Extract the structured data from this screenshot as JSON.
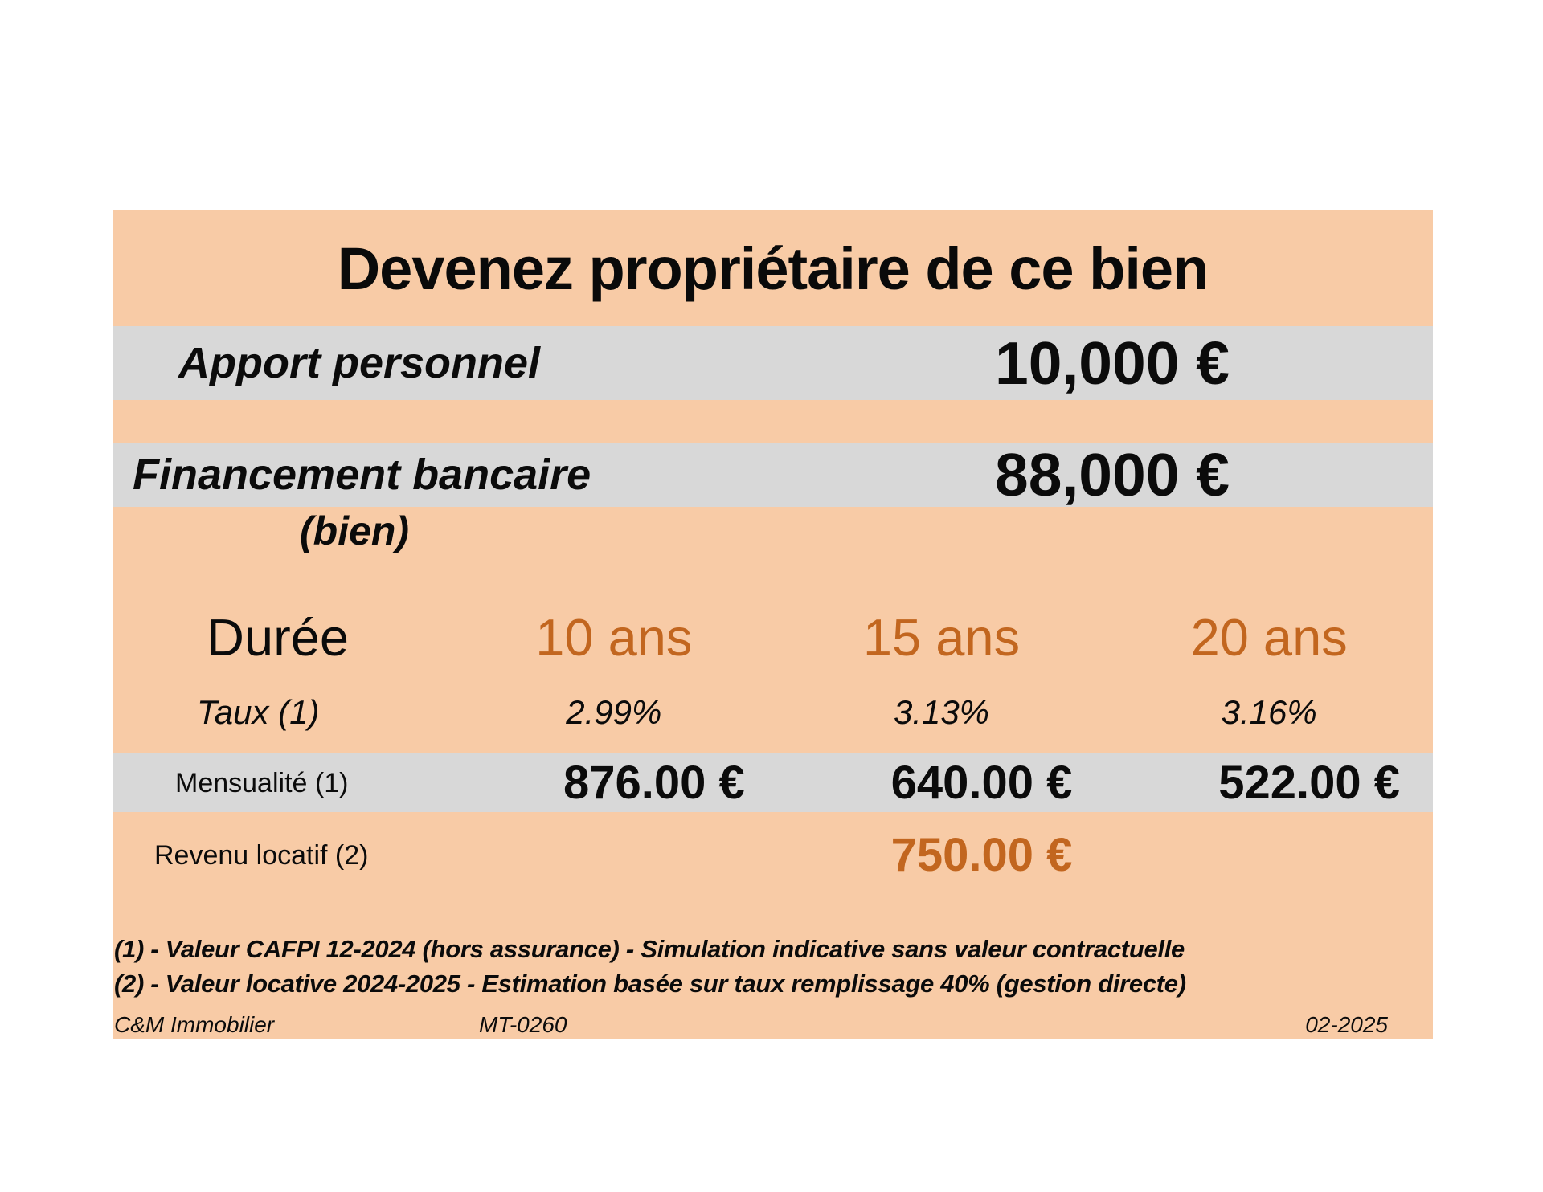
{
  "panel": {
    "title": "Devenez propriétaire de ce bien",
    "colors": {
      "panel_peach": "#F8CBA6",
      "band_gray": "#D8D8D8",
      "accent_orange": "#C2661F",
      "text_black": "#0B0B0B",
      "page_white": "#FFFFFF"
    }
  },
  "rows": {
    "apport": {
      "label": "Apport personnel",
      "value": "10,000 €"
    },
    "financement": {
      "label": "Financement bancaire",
      "note": "(bien)",
      "value": "88,000 €"
    }
  },
  "table": {
    "duree_label": "Durée",
    "durations": [
      "10 ans",
      "15 ans",
      "20 ans"
    ],
    "taux_label": "Taux (1)",
    "taux": [
      "2.99%",
      "3.13%",
      "3.16%"
    ],
    "mensualite_label": "Mensualité (1)",
    "mensualites": [
      "876.00 €",
      "640.00 €",
      "522.00 €"
    ],
    "revenu_label": "Revenu locatif (2)",
    "revenu": "750.00 €"
  },
  "footnotes": [
    "(1) - Valeur CAFPI 12-2024 (hors assurance) - Simulation indicative sans valeur contractuelle",
    "(2) - Valeur locative 2024-2025 - Estimation basée sur taux remplissage 40% (gestion directe)"
  ],
  "footer": {
    "company": "C&M Immobilier",
    "reference": "MT-0260",
    "date": "02-2025"
  }
}
